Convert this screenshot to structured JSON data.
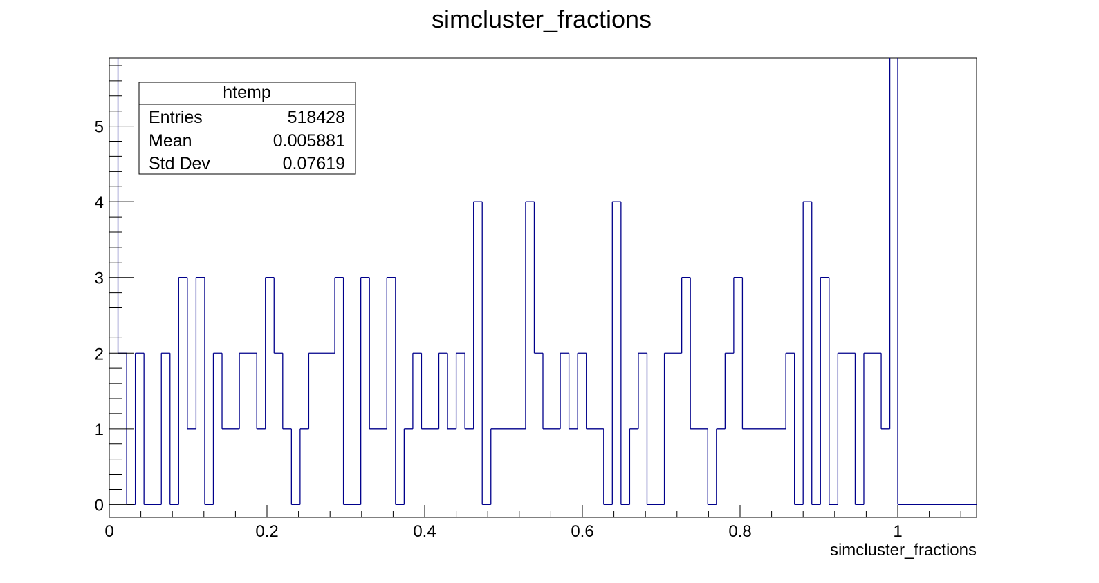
{
  "chart_data": {
    "type": "bar",
    "histogram_style": "step",
    "title": "simcluster_fractions",
    "xlabel": "simcluster_fractions",
    "ylabel": "",
    "xlim": [
      0,
      1.1
    ],
    "ylim": [
      -0.17,
      5.9
    ],
    "x_ticks": [
      {
        "value": 0,
        "label": "0"
      },
      {
        "value": 0.2,
        "label": "0.2"
      },
      {
        "value": 0.4,
        "label": "0.4"
      },
      {
        "value": 0.6,
        "label": "0.6"
      },
      {
        "value": 0.8,
        "label": "0.8"
      },
      {
        "value": 1,
        "label": "1"
      }
    ],
    "y_ticks": [
      {
        "value": 0,
        "label": "0"
      },
      {
        "value": 1,
        "label": "1"
      },
      {
        "value": 2,
        "label": "2"
      },
      {
        "value": 3,
        "label": "3"
      },
      {
        "value": 4,
        "label": "4"
      },
      {
        "value": 5,
        "label": "5"
      }
    ],
    "bin_edges": [
      0,
      0.011,
      0.022,
      0.033,
      0.044,
      0.066,
      0.077,
      0.088,
      0.099,
      0.11,
      0.121,
      0.132,
      0.143,
      0.165,
      0.187,
      0.198,
      0.209,
      0.22,
      0.231,
      0.242,
      0.253,
      0.286,
      0.297,
      0.319,
      0.33,
      0.352,
      0.363,
      0.374,
      0.385,
      0.396,
      0.418,
      0.429,
      0.44,
      0.451,
      0.462,
      0.473,
      0.484,
      0.528,
      0.539,
      0.55,
      0.572,
      0.583,
      0.594,
      0.605,
      0.627,
      0.638,
      0.649,
      0.66,
      0.671,
      0.682,
      0.704,
      0.726,
      0.737,
      0.759,
      0.77,
      0.781,
      0.792,
      0.803,
      0.858,
      0.869,
      0.88,
      0.891,
      0.902,
      0.913,
      0.924,
      0.946,
      0.957,
      0.979,
      0.99,
      1.0,
      1.1
    ],
    "values": [
      6.5,
      2,
      0,
      2,
      0,
      2,
      0,
      3,
      1,
      3,
      0,
      2,
      1,
      2,
      1,
      3,
      2,
      1,
      0,
      1,
      2,
      3,
      0,
      3,
      1,
      3,
      0,
      1,
      2,
      1,
      2,
      1,
      2,
      1,
      4,
      0,
      1,
      4,
      2,
      1,
      2,
      1,
      2,
      1,
      0,
      4,
      0,
      1,
      2,
      0,
      2,
      3,
      1,
      0,
      1,
      2,
      3,
      1,
      2,
      0,
      4,
      0,
      3,
      0,
      2,
      0,
      2,
      1,
      6.5,
      0
    ],
    "colors": {
      "line": "#00008b",
      "axis": "#000000",
      "background": "#ffffff"
    },
    "legend": "top-left",
    "stats_box": {
      "title": "htemp",
      "rows": [
        {
          "label": "Entries",
          "value": "518428"
        },
        {
          "label": "Mean",
          "value": "0.005881"
        },
        {
          "label": "Std Dev",
          "value": "0.07619"
        }
      ]
    },
    "grid": false
  }
}
